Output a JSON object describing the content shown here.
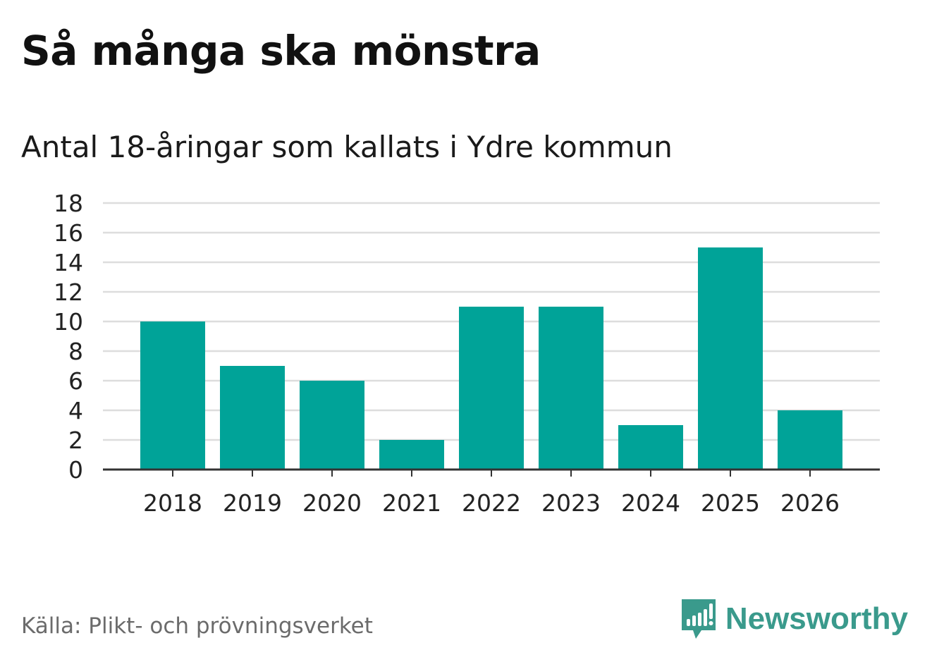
{
  "title": "Så många ska mönstra",
  "subtitle": "Antal 18-åringar som kallats i Ydre kommun",
  "source": "Källa: Plikt- och prövningsverket",
  "brand": {
    "name": "Newsworthy",
    "icon": "newsworthy-logo-icon",
    "color": "#3a9a8c"
  },
  "colors": {
    "bar": "#00a398",
    "grid": "#dddddd",
    "axis": "#333333"
  },
  "chart_data": {
    "type": "bar",
    "categories": [
      "2018",
      "2019",
      "2020",
      "2021",
      "2022",
      "2023",
      "2024",
      "2025",
      "2026"
    ],
    "values": [
      10,
      7,
      6,
      2,
      11,
      11,
      3,
      15,
      4
    ],
    "title": "Så många ska mönstra",
    "subtitle": "Antal 18-åringar som kallats i Ydre kommun",
    "xlabel": "",
    "ylabel": "",
    "ylim": [
      0,
      18
    ],
    "yticks": [
      0,
      2,
      4,
      6,
      8,
      10,
      12,
      14,
      16,
      18
    ],
    "grid": true,
    "legend": "none"
  }
}
